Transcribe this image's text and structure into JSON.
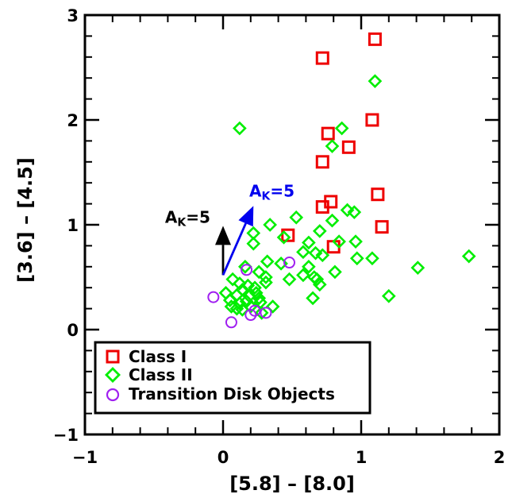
{
  "chart_data": {
    "type": "scatter",
    "xlabel": "[5.8] – [8.0]",
    "ylabel": "[3.6] – [4.5]",
    "xlim": [
      -1,
      2
    ],
    "ylim": [
      -1,
      3
    ],
    "xticks": [
      -1,
      0,
      1,
      2
    ],
    "yticks": [
      -1,
      0,
      1,
      2,
      3
    ],
    "xtick_labels": [
      "−1",
      "0",
      "1",
      "2"
    ],
    "ytick_labels": [
      "−1",
      "0",
      "1",
      "2",
      "3"
    ],
    "grid": false,
    "legend_position": "bottom-left",
    "series": [
      {
        "name": "Class I",
        "marker": "square",
        "color": "#ee0000",
        "points": [
          [
            1.1,
            2.77
          ],
          [
            0.72,
            2.59
          ],
          [
            0.76,
            1.87
          ],
          [
            0.91,
            1.74
          ],
          [
            1.08,
            2.0
          ],
          [
            0.72,
            1.6
          ],
          [
            0.78,
            1.22
          ],
          [
            0.72,
            1.17
          ],
          [
            1.12,
            1.29
          ],
          [
            1.15,
            0.98
          ],
          [
            0.47,
            0.9
          ],
          [
            0.8,
            0.79
          ]
        ]
      },
      {
        "name": "Class II",
        "marker": "diamond",
        "color": "#00ee00",
        "points": [
          [
            1.1,
            2.37
          ],
          [
            0.12,
            1.92
          ],
          [
            0.86,
            1.92
          ],
          [
            0.79,
            1.75
          ],
          [
            0.9,
            1.14
          ],
          [
            0.95,
            1.12
          ],
          [
            0.53,
            1.07
          ],
          [
            0.79,
            1.04
          ],
          [
            0.34,
            1.0
          ],
          [
            0.22,
            0.92
          ],
          [
            0.7,
            0.94
          ],
          [
            0.44,
            0.88
          ],
          [
            0.62,
            0.83
          ],
          [
            0.84,
            0.84
          ],
          [
            0.96,
            0.84
          ],
          [
            0.22,
            0.82
          ],
          [
            0.58,
            0.74
          ],
          [
            0.67,
            0.73
          ],
          [
            0.72,
            0.71
          ],
          [
            0.97,
            0.68
          ],
          [
            1.08,
            0.68
          ],
          [
            1.78,
            0.7
          ],
          [
            0.32,
            0.65
          ],
          [
            0.42,
            0.63
          ],
          [
            0.16,
            0.6
          ],
          [
            0.26,
            0.55
          ],
          [
            1.41,
            0.59
          ],
          [
            0.62,
            0.6
          ],
          [
            0.58,
            0.52
          ],
          [
            0.68,
            0.48
          ],
          [
            0.81,
            0.55
          ],
          [
            0.31,
            0.5
          ],
          [
            0.48,
            0.48
          ],
          [
            0.7,
            0.43
          ],
          [
            0.66,
            0.5
          ],
          [
            0.07,
            0.48
          ],
          [
            0.12,
            0.44
          ],
          [
            0.18,
            0.42
          ],
          [
            0.23,
            0.4
          ],
          [
            0.31,
            0.45
          ],
          [
            0.02,
            0.35
          ],
          [
            0.1,
            0.33
          ],
          [
            0.14,
            0.38
          ],
          [
            0.19,
            0.32
          ],
          [
            0.26,
            0.3
          ],
          [
            0.05,
            0.28
          ],
          [
            0.12,
            0.25
          ],
          [
            0.17,
            0.27
          ],
          [
            0.27,
            0.26
          ],
          [
            0.2,
            0.22
          ],
          [
            0.1,
            0.2
          ],
          [
            0.06,
            0.22
          ],
          [
            0.36,
            0.22
          ],
          [
            0.65,
            0.3
          ],
          [
            1.2,
            0.32
          ],
          [
            0.24,
            0.35
          ],
          [
            0.14,
            0.19
          ],
          [
            0.28,
            0.16
          ]
        ]
      },
      {
        "name": "Transition Disk Objects",
        "marker": "circle",
        "color": "#a020f0",
        "points": [
          [
            -0.07,
            0.31
          ],
          [
            0.17,
            0.57
          ],
          [
            0.48,
            0.64
          ],
          [
            0.06,
            0.07
          ],
          [
            0.2,
            0.14
          ],
          [
            0.31,
            0.16
          ],
          [
            0.23,
            0.18
          ]
        ]
      }
    ],
    "annotations": [
      {
        "label": "A",
        "sub": "K",
        "suffix": "=5",
        "color": "#000000",
        "arrow_from": [
          0.0,
          0.52
        ],
        "arrow_to": [
          0.0,
          0.99
        ],
        "text_at": [
          -0.42,
          1.02
        ]
      },
      {
        "label": "A",
        "sub": "K",
        "suffix": "=5",
        "color": "#0000ee",
        "arrow_from": [
          0.0,
          0.52
        ],
        "arrow_to": [
          0.22,
          1.18
        ],
        "text_at": [
          0.19,
          1.27
        ]
      }
    ]
  }
}
